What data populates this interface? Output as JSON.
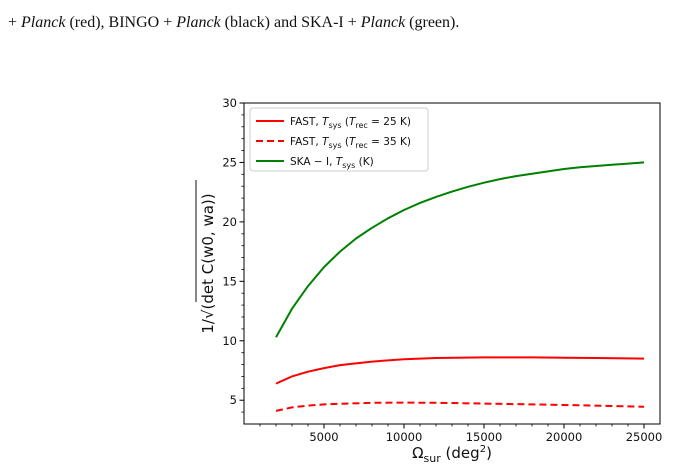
{
  "caption": {
    "prefix": "+ ",
    "parts": [
      {
        "text": "Planck",
        "italic": true
      },
      {
        "text": " (red), BINGO + ",
        "italic": false
      },
      {
        "text": "Planck",
        "italic": true
      },
      {
        "text": " (black) and SKA-I + ",
        "italic": false
      },
      {
        "text": "Planck",
        "italic": true
      },
      {
        "text": " (green).",
        "italic": false
      }
    ]
  },
  "chart_data": {
    "type": "line",
    "xlabel": "Ω_sur (deg²)",
    "ylabel": "1/√(det C(w0, wa))",
    "xlim": [
      0,
      26000
    ],
    "ylim": [
      3,
      30
    ],
    "xticks": [
      5000,
      10000,
      15000,
      20000,
      25000
    ],
    "yticks": [
      5,
      10,
      15,
      20,
      25,
      30
    ],
    "grid": false,
    "legend_position": "top-left",
    "series": [
      {
        "name": "FAST, T_sys (T_rec = 25 K)",
        "color": "#ff0000",
        "dash": "solid",
        "x": [
          2000,
          3000,
          4000,
          5000,
          6000,
          7000,
          8000,
          10000,
          12000,
          15000,
          18000,
          20000,
          22000,
          25000
        ],
        "y": [
          6.4,
          7.0,
          7.4,
          7.7,
          7.95,
          8.1,
          8.25,
          8.45,
          8.55,
          8.6,
          8.6,
          8.58,
          8.55,
          8.5
        ]
      },
      {
        "name": "FAST, T_sys (T_rec = 35 K)",
        "color": "#ff0000",
        "dash": "dashed",
        "x": [
          2000,
          3000,
          4000,
          5000,
          6000,
          8000,
          10000,
          12000,
          15000,
          18000,
          20000,
          22000,
          25000
        ],
        "y": [
          4.1,
          4.4,
          4.55,
          4.65,
          4.7,
          4.78,
          4.8,
          4.78,
          4.72,
          4.65,
          4.6,
          4.55,
          4.45
        ]
      },
      {
        "name": "SKA − I, T_sys (K)",
        "color": "#008000",
        "dash": "solid",
        "x": [
          2000,
          3000,
          4000,
          5000,
          6000,
          7000,
          8000,
          9000,
          10000,
          11000,
          12000,
          13000,
          14000,
          15000,
          16000,
          17000,
          18000,
          19000,
          20000,
          21000,
          22000,
          23000,
          24000,
          25000
        ],
        "y": [
          10.3,
          12.7,
          14.6,
          16.2,
          17.5,
          18.6,
          19.5,
          20.3,
          21.0,
          21.6,
          22.1,
          22.55,
          22.95,
          23.3,
          23.6,
          23.85,
          24.05,
          24.25,
          24.45,
          24.6,
          24.7,
          24.8,
          24.9,
          25.0
        ]
      }
    ]
  },
  "legend": [
    {
      "label_pre": "FAST,  ",
      "T": "T",
      "sub": "sys",
      "post": " (",
      "T2": "T",
      "sub2": "rec",
      "end": " = 25 K)"
    },
    {
      "label_pre": "FAST,  ",
      "T": "T",
      "sub": "sys",
      "post": " (",
      "T2": "T",
      "sub2": "rec",
      "end": " = 35 K)"
    },
    {
      "label_pre": "SKA − I,  ",
      "T": "T",
      "sub": "sys",
      "post": " (K)",
      "T2": "",
      "sub2": "",
      "end": ""
    }
  ]
}
